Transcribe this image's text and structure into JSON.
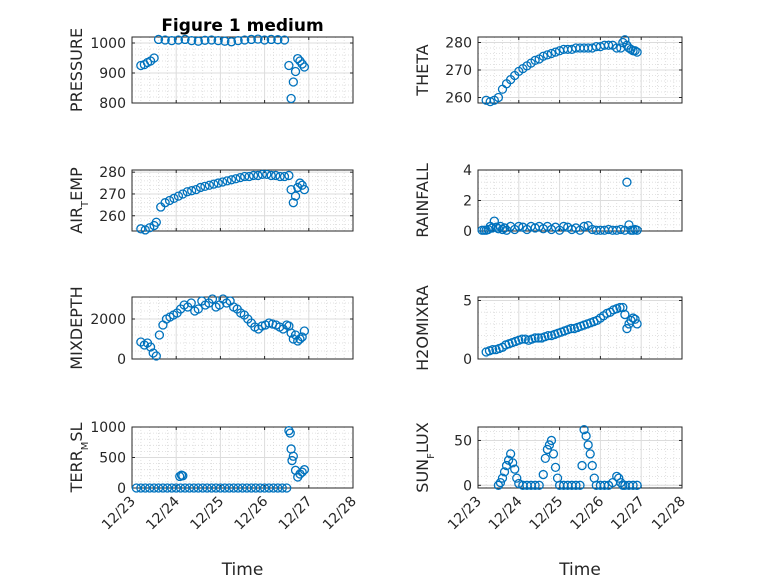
{
  "figure": {
    "title": "Figure 1 medium",
    "marker_color": "#0072BD"
  },
  "chart_data": [
    {
      "type": "scatter",
      "title": "Figure 1 medium",
      "ylabel": "PRESSURE",
      "xlabel": "",
      "ylim": [
        800,
        1020
      ],
      "yticks": [
        800,
        900,
        1000
      ],
      "ytick_labels": [
        "800",
        "900",
        "1000"
      ],
      "xlim": [
        0,
        5
      ],
      "xticks": [
        0,
        1,
        2,
        3,
        4,
        5
      ],
      "xtick_labels": [],
      "x": [
        0.2,
        0.28,
        0.35,
        0.42,
        0.5,
        0.6,
        0.75,
        0.9,
        1.05,
        1.2,
        1.35,
        1.5,
        1.65,
        1.8,
        1.95,
        2.1,
        2.25,
        2.4,
        2.55,
        2.7,
        2.85,
        3.0,
        3.15,
        3.3,
        3.45,
        3.55,
        3.6,
        3.65,
        3.7,
        3.75,
        3.8,
        3.85,
        3.9
      ],
      "y": [
        925,
        928,
        935,
        940,
        950,
        1012,
        1010,
        1008,
        1010,
        1012,
        1008,
        1006,
        1009,
        1010,
        1008,
        1006,
        1004,
        1008,
        1010,
        1012,
        1013,
        1010,
        1012,
        1011,
        1010,
        925,
        815,
        870,
        905,
        948,
        940,
        930,
        920
      ]
    },
    {
      "type": "scatter",
      "title": "",
      "ylabel": "THETA",
      "xlabel": "",
      "ylim": [
        258,
        282
      ],
      "yticks": [
        260,
        270,
        280
      ],
      "ytick_labels": [
        "260",
        "270",
        "280"
      ],
      "xlim": [
        0,
        5
      ],
      "xticks": [
        0,
        1,
        2,
        3,
        4,
        5
      ],
      "xtick_labels": [],
      "x": [
        0.2,
        0.3,
        0.4,
        0.5,
        0.6,
        0.7,
        0.8,
        0.9,
        1.0,
        1.1,
        1.2,
        1.3,
        1.4,
        1.5,
        1.6,
        1.7,
        1.8,
        1.9,
        2.0,
        2.1,
        2.2,
        2.3,
        2.4,
        2.5,
        2.6,
        2.7,
        2.8,
        2.9,
        3.0,
        3.1,
        3.2,
        3.3,
        3.4,
        3.5,
        3.55,
        3.6,
        3.65,
        3.7,
        3.75,
        3.8,
        3.85,
        3.9
      ],
      "y": [
        259,
        258.5,
        259,
        260,
        263,
        265,
        266.5,
        268,
        269.5,
        270.5,
        271.5,
        272.5,
        273.5,
        274,
        275,
        275.5,
        276,
        276.5,
        277,
        277.5,
        277.5,
        277.5,
        278,
        278,
        278,
        278,
        278,
        278.5,
        278.5,
        279,
        279,
        279,
        278,
        278,
        280,
        281,
        279,
        278,
        277.5,
        277,
        277,
        276.5
      ]
    },
    {
      "type": "scatter",
      "title": "",
      "ylabel": "AIR_TEMP",
      "ylabel_parts": [
        "AIR",
        "T",
        "EMP"
      ],
      "xlabel": "",
      "ylim": [
        253,
        281
      ],
      "yticks": [
        260,
        270,
        280
      ],
      "ytick_labels": [
        "260",
        "270",
        "280"
      ],
      "xlim": [
        0,
        5
      ],
      "xticks": [
        0,
        1,
        2,
        3,
        4,
        5
      ],
      "xtick_labels": [],
      "x": [
        0.2,
        0.3,
        0.4,
        0.5,
        0.55,
        0.65,
        0.75,
        0.85,
        0.95,
        1.05,
        1.15,
        1.25,
        1.35,
        1.45,
        1.55,
        1.65,
        1.75,
        1.85,
        1.95,
        2.05,
        2.15,
        2.25,
        2.35,
        2.45,
        2.55,
        2.65,
        2.75,
        2.85,
        2.95,
        3.05,
        3.15,
        3.25,
        3.35,
        3.45,
        3.55,
        3.6,
        3.65,
        3.7,
        3.75,
        3.8,
        3.85,
        3.9
      ],
      "y": [
        254,
        253.5,
        254.5,
        255.5,
        257,
        264,
        266,
        267,
        268,
        269,
        270,
        271,
        271.5,
        272,
        273,
        273.5,
        274,
        274.5,
        275,
        275.5,
        276,
        276.5,
        277,
        277.5,
        278,
        278,
        278.5,
        278.5,
        279,
        279,
        278.5,
        278.5,
        278,
        278,
        278.5,
        272,
        266,
        269,
        273,
        275,
        274,
        272
      ]
    },
    {
      "type": "scatter",
      "title": "",
      "ylabel": "RAINFALL",
      "xlabel": "",
      "ylim": [
        0,
        4
      ],
      "yticks": [
        0,
        2,
        4
      ],
      "ytick_labels": [
        "0",
        "2",
        "4"
      ],
      "xlim": [
        0,
        5
      ],
      "xticks": [
        0,
        1,
        2,
        3,
        4,
        5
      ],
      "xtick_labels": [],
      "x": [
        0.1,
        0.15,
        0.2,
        0.25,
        0.3,
        0.35,
        0.4,
        0.45,
        0.5,
        0.55,
        0.6,
        0.65,
        0.7,
        0.8,
        0.9,
        1.0,
        1.1,
        1.2,
        1.3,
        1.4,
        1.5,
        1.6,
        1.7,
        1.8,
        1.9,
        2.0,
        2.1,
        2.2,
        2.3,
        2.4,
        2.5,
        2.6,
        2.7,
        2.8,
        2.9,
        3.0,
        3.1,
        3.2,
        3.3,
        3.4,
        3.5,
        3.6,
        3.65,
        3.7,
        3.75,
        3.8,
        3.85,
        3.9
      ],
      "y": [
        0.05,
        0.05,
        0.05,
        0.1,
        0.3,
        0.2,
        0.65,
        0.25,
        0.15,
        0.3,
        0.1,
        0.2,
        0.05,
        0.3,
        0.1,
        0.3,
        0.25,
        0.1,
        0.3,
        0.2,
        0.3,
        0.15,
        0.3,
        0.1,
        0.25,
        0.05,
        0.3,
        0.25,
        0.1,
        0.2,
        0.05,
        0.3,
        0.35,
        0.1,
        0.05,
        0.05,
        0.05,
        0.1,
        0.05,
        0.05,
        0.1,
        0.05,
        3.2,
        0.4,
        0.05,
        0.05,
        0.1,
        0.05
      ]
    },
    {
      "type": "scatter",
      "title": "",
      "ylabel": "MIXDEPTH",
      "xlabel": "",
      "ylim": [
        0,
        3100
      ],
      "yticks": [
        0,
        2000
      ],
      "ytick_labels": [
        "0",
        "2000"
      ],
      "xlim": [
        0,
        5
      ],
      "xticks": [
        0,
        1,
        2,
        3,
        4,
        5
      ],
      "xtick_labels": [],
      "x": [
        0.2,
        0.28,
        0.35,
        0.42,
        0.48,
        0.55,
        0.62,
        0.7,
        0.78,
        0.86,
        0.94,
        1.02,
        1.1,
        1.18,
        1.26,
        1.34,
        1.42,
        1.5,
        1.58,
        1.66,
        1.74,
        1.82,
        1.9,
        1.98,
        2.06,
        2.14,
        2.22,
        2.3,
        2.38,
        2.46,
        2.54,
        2.62,
        2.7,
        2.78,
        2.86,
        2.94,
        3.02,
        3.1,
        3.18,
        3.26,
        3.34,
        3.42,
        3.5,
        3.55,
        3.6,
        3.65,
        3.7,
        3.75,
        3.8,
        3.85,
        3.9
      ],
      "y": [
        850,
        700,
        800,
        600,
        300,
        150,
        1200,
        1700,
        2000,
        2100,
        2200,
        2300,
        2500,
        2700,
        2600,
        2800,
        2400,
        2500,
        2900,
        2700,
        2800,
        3000,
        2600,
        2700,
        3000,
        2800,
        2900,
        2600,
        2500,
        2300,
        2200,
        2000,
        1800,
        1600,
        1500,
        1650,
        1700,
        1800,
        1750,
        1700,
        1600,
        1500,
        1700,
        1650,
        1300,
        1000,
        1200,
        900,
        1000,
        1100,
        1400
      ]
    },
    {
      "type": "scatter",
      "title": "",
      "ylabel": "H2OMIXRA",
      "xlabel": "",
      "ylim": [
        0,
        5.3
      ],
      "yticks": [
        0,
        5
      ],
      "ytick_labels": [
        "0",
        "5"
      ],
      "xlim": [
        0,
        5
      ],
      "xticks": [
        0,
        1,
        2,
        3,
        4,
        5
      ],
      "xtick_labels": [],
      "x": [
        0.2,
        0.28,
        0.36,
        0.44,
        0.52,
        0.6,
        0.68,
        0.76,
        0.84,
        0.92,
        1.0,
        1.08,
        1.16,
        1.24,
        1.32,
        1.4,
        1.48,
        1.56,
        1.64,
        1.72,
        1.8,
        1.88,
        1.96,
        2.04,
        2.12,
        2.2,
        2.28,
        2.36,
        2.44,
        2.52,
        2.6,
        2.68,
        2.76,
        2.84,
        2.92,
        3.0,
        3.08,
        3.16,
        3.24,
        3.32,
        3.4,
        3.48,
        3.55,
        3.6,
        3.65,
        3.7,
        3.75,
        3.8,
        3.85,
        3.9
      ],
      "y": [
        0.6,
        0.7,
        0.8,
        0.8,
        0.9,
        1.0,
        1.2,
        1.3,
        1.4,
        1.5,
        1.6,
        1.7,
        1.7,
        1.6,
        1.7,
        1.8,
        1.8,
        1.8,
        1.9,
        2.0,
        2.0,
        2.1,
        2.2,
        2.3,
        2.4,
        2.5,
        2.6,
        2.6,
        2.7,
        2.8,
        2.9,
        3.0,
        3.1,
        3.2,
        3.3,
        3.5,
        3.7,
        3.9,
        4.0,
        4.2,
        4.3,
        4.4,
        4.4,
        3.8,
        2.6,
        3.0,
        3.3,
        3.5,
        3.4,
        3.0
      ]
    },
    {
      "type": "scatter",
      "title": "",
      "ylabel": "TERR_MSL",
      "ylabel_parts": [
        "TERR",
        "M",
        "SL"
      ],
      "xlabel": "Time",
      "ylim": [
        0,
        1000
      ],
      "yticks": [
        0,
        500,
        1000
      ],
      "ytick_labels": [
        "0",
        "500",
        "1000"
      ],
      "xlim": [
        0,
        5
      ],
      "xticks": [
        0,
        1,
        2,
        3,
        4,
        5
      ],
      "xtick_labels": [
        "12/23",
        "12/24",
        "12/25",
        "12/26",
        "12/27",
        "12/28"
      ],
      "x": [
        0.1,
        0.2,
        0.3,
        0.4,
        0.5,
        0.6,
        0.7,
        0.8,
        0.9,
        1.0,
        1.1,
        1.2,
        1.3,
        1.4,
        1.5,
        1.6,
        1.7,
        1.8,
        1.9,
        2.0,
        2.1,
        2.2,
        2.3,
        2.4,
        2.5,
        2.6,
        2.7,
        2.8,
        2.9,
        3.0,
        3.1,
        3.2,
        3.3,
        3.4,
        3.5,
        1.08,
        1.12,
        1.15,
        3.55,
        3.58,
        3.6,
        3.62,
        3.65,
        3.7,
        3.75,
        3.8,
        3.85,
        3.9
      ],
      "y": [
        0,
        0,
        0,
        0,
        0,
        0,
        0,
        0,
        0,
        0,
        0,
        0,
        0,
        0,
        0,
        0,
        0,
        0,
        0,
        0,
        0,
        0,
        0,
        0,
        0,
        0,
        0,
        0,
        0,
        0,
        0,
        0,
        0,
        0,
        0,
        190,
        210,
        200,
        940,
        900,
        640,
        450,
        520,
        290,
        180,
        230,
        260,
        300
      ]
    },
    {
      "type": "scatter",
      "title": "",
      "ylabel": "SUN_FLUX",
      "ylabel_parts": [
        "SUN",
        "F",
        "LUX"
      ],
      "xlabel": "Time",
      "ylim": [
        -3,
        65
      ],
      "yticks": [
        0,
        50
      ],
      "ytick_labels": [
        "0",
        "50"
      ],
      "xlim": [
        0,
        5
      ],
      "xticks": [
        0,
        1,
        2,
        3,
        4,
        5
      ],
      "xtick_labels": [
        "12/23",
        "12/24",
        "12/25",
        "12/26",
        "12/27",
        "12/28"
      ],
      "x": [
        0.5,
        0.55,
        0.6,
        0.65,
        0.7,
        0.75,
        0.8,
        0.85,
        0.9,
        0.95,
        1.0,
        1.1,
        1.2,
        1.3,
        1.4,
        1.5,
        1.6,
        1.65,
        1.7,
        1.75,
        1.8,
        1.85,
        1.9,
        1.95,
        2.0,
        2.1,
        2.2,
        2.3,
        2.4,
        2.5,
        2.55,
        2.6,
        2.65,
        2.7,
        2.75,
        2.8,
        2.85,
        2.9,
        3.0,
        3.1,
        3.2,
        3.3,
        3.4,
        3.45,
        3.5,
        3.55,
        3.6,
        3.7,
        3.8,
        3.9
      ],
      "y": [
        0,
        3,
        8,
        15,
        22,
        28,
        35,
        25,
        18,
        8,
        2,
        0,
        0,
        0,
        0,
        0,
        12,
        30,
        40,
        45,
        50,
        35,
        20,
        8,
        0,
        0,
        0,
        0,
        0,
        0,
        22,
        62,
        55,
        45,
        35,
        22,
        8,
        0,
        0,
        0,
        0,
        3,
        10,
        8,
        3,
        0,
        0,
        0,
        0,
        0
      ]
    }
  ]
}
